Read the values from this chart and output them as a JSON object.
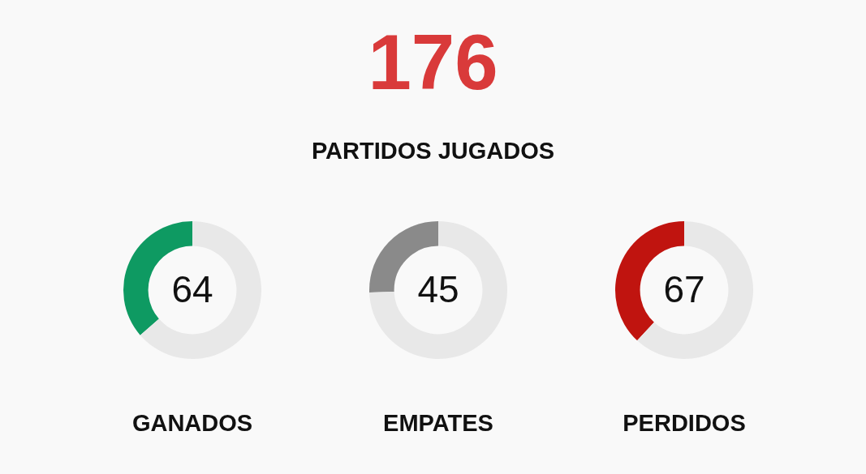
{
  "chart_data": [
    {
      "type": "other",
      "title": "176",
      "subtitle": "PARTIDOS JUGADOS",
      "color": "#d93a3a"
    },
    {
      "type": "donut",
      "categories": [
        null,
        null
      ],
      "values": [
        64,
        112
      ],
      "colors": [
        "#0e9a62",
        "#e8e8e8"
      ],
      "value_labels": [
        "64",
        null
      ],
      "xlabel": "GANADOS"
    },
    {
      "type": "donut",
      "categories": [
        null,
        null
      ],
      "values": [
        45,
        131
      ],
      "colors": [
        "#8a8a8a",
        "#e8e8e8"
      ],
      "value_labels": [
        "45",
        null
      ],
      "xlabel": "EMPATES"
    },
    {
      "type": "donut",
      "categories": [
        null,
        null
      ],
      "values": [
        67,
        109
      ],
      "colors": [
        "#c0140f",
        "#e8e8e8"
      ],
      "value_labels": [
        "67",
        null
      ],
      "xlabel": "PERDIDOS"
    }
  ]
}
